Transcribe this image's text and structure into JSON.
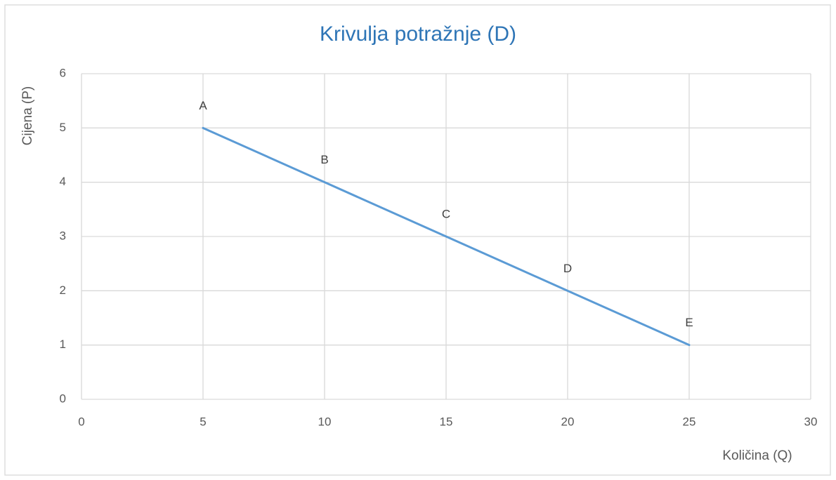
{
  "chart_data": {
    "type": "line",
    "title": "Krivulja potražnje (D)",
    "x_label": "Količina (Q)",
    "y_label": "Cijena (P)",
    "x": [
      5,
      10,
      15,
      20,
      25
    ],
    "values": [
      5,
      4,
      3,
      2,
      1
    ],
    "point_labels": [
      "A",
      "B",
      "C",
      "D",
      "E"
    ],
    "color": "#5b9bd5",
    "xlim": [
      0,
      30
    ],
    "xticks": [
      0,
      5,
      10,
      15,
      20,
      25,
      30
    ],
    "ylim": [
      0,
      6
    ],
    "yticks": [
      0,
      1,
      2,
      3,
      4,
      5,
      6
    ],
    "grid": true
  }
}
